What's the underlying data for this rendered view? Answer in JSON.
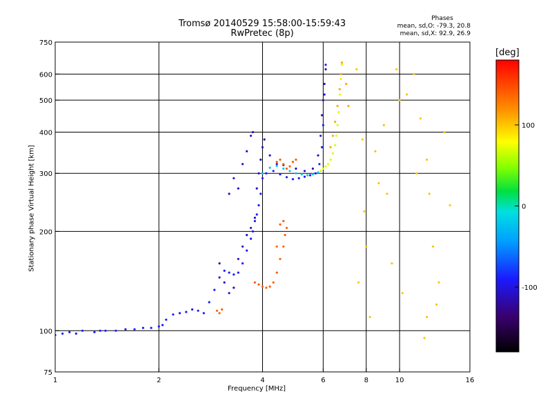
{
  "chart_data": {
    "type": "scatter",
    "title": "Tromsø 20140529 15:58:00-15:59:43",
    "subtitle": "RwPretec (8p)",
    "xlabel": "Frequency [MHz]",
    "ylabel": "Stationary phase Virtual Height [km]",
    "x_scale": "log",
    "y_scale": "log",
    "xlim": [
      1,
      16
    ],
    "ylim": [
      75,
      750
    ],
    "x_ticks": [
      1,
      2,
      4,
      6,
      8,
      10,
      16
    ],
    "x_tick_labels": [
      "1",
      "2",
      "4",
      "6",
      "8",
      "10",
      "16"
    ],
    "y_ticks": [
      75,
      100,
      200,
      300,
      400,
      500,
      600,
      750
    ],
    "y_tick_labels": [
      "75",
      "100",
      "200",
      "300",
      "400",
      "500",
      "600",
      "750"
    ],
    "grid": true,
    "legend": {
      "title": "Phases",
      "lines": [
        "mean, sd,O: -79.3, 20.8",
        "mean, sd,X:  92.9, 26.9"
      ]
    },
    "colorbar": {
      "label": "[deg]",
      "min": -180,
      "max": 180,
      "ticks": [
        100,
        0,
        -100
      ],
      "tick_labels": [
        "100",
        "0",
        "-100"
      ],
      "colormap": "rainbow-black-to-red"
    },
    "series": [
      {
        "trace": "low-E-to-F-O",
        "phase_deg": -90,
        "points": [
          [
            1.0,
            97
          ],
          [
            1.05,
            98
          ],
          [
            1.1,
            99
          ],
          [
            1.15,
            98
          ],
          [
            1.2,
            100
          ],
          [
            1.3,
            99
          ],
          [
            1.35,
            100
          ],
          [
            1.4,
            100
          ],
          [
            1.5,
            100
          ],
          [
            1.6,
            101
          ],
          [
            1.7,
            101
          ],
          [
            1.8,
            102
          ],
          [
            1.9,
            102
          ],
          [
            2.0,
            103
          ],
          [
            2.05,
            104
          ],
          [
            2.1,
            108
          ],
          [
            2.2,
            112
          ],
          [
            2.3,
            113
          ],
          [
            2.4,
            114
          ],
          [
            2.5,
            116
          ],
          [
            2.6,
            115
          ],
          [
            2.7,
            113
          ],
          [
            2.8,
            122
          ],
          [
            2.9,
            133
          ],
          [
            3.0,
            145
          ],
          [
            3.1,
            152
          ],
          [
            3.2,
            150
          ],
          [
            3.3,
            148
          ],
          [
            3.4,
            150
          ],
          [
            3.5,
            160
          ],
          [
            3.6,
            175
          ],
          [
            3.7,
            190
          ],
          [
            3.75,
            200
          ],
          [
            3.8,
            215
          ],
          [
            3.85,
            225
          ],
          [
            3.9,
            240
          ],
          [
            3.95,
            260
          ],
          [
            4.0,
            290
          ],
          [
            4.1,
            300
          ],
          [
            4.3,
            305
          ],
          [
            4.5,
            298
          ],
          [
            4.7,
            292
          ],
          [
            4.9,
            288
          ],
          [
            5.1,
            290
          ],
          [
            5.3,
            293
          ],
          [
            5.5,
            296
          ],
          [
            5.7,
            300
          ],
          [
            5.85,
            320
          ],
          [
            5.95,
            360
          ],
          [
            6.0,
            420
          ],
          [
            6.05,
            520
          ],
          [
            6.1,
            640
          ]
        ]
      },
      {
        "trace": "F-spread-blue",
        "phase_deg": -110,
        "points": [
          [
            3.0,
            160
          ],
          [
            3.1,
            140
          ],
          [
            3.2,
            130
          ],
          [
            3.3,
            135
          ],
          [
            3.4,
            165
          ],
          [
            3.5,
            180
          ],
          [
            3.6,
            195
          ],
          [
            3.7,
            205
          ],
          [
            3.8,
            220
          ],
          [
            3.85,
            270
          ],
          [
            3.9,
            300
          ],
          [
            3.95,
            330
          ],
          [
            4.0,
            360
          ],
          [
            4.05,
            380
          ],
          [
            3.6,
            350
          ],
          [
            3.5,
            320
          ],
          [
            3.3,
            290
          ],
          [
            3.4,
            270
          ],
          [
            3.2,
            260
          ],
          [
            3.7,
            390
          ],
          [
            3.75,
            400
          ],
          [
            4.2,
            340
          ],
          [
            4.4,
            320
          ],
          [
            4.6,
            318
          ],
          [
            5.0,
            310
          ],
          [
            5.3,
            305
          ],
          [
            5.6,
            310
          ],
          [
            5.8,
            340
          ],
          [
            5.9,
            390
          ],
          [
            5.95,
            450
          ],
          [
            6.0,
            500
          ],
          [
            6.05,
            560
          ],
          [
            6.1,
            620
          ]
        ]
      },
      {
        "trace": "X-mode-orange",
        "phase_deg": 140,
        "points": [
          [
            3.8,
            140
          ],
          [
            3.9,
            138
          ],
          [
            4.0,
            136
          ],
          [
            4.1,
            135
          ],
          [
            4.2,
            136
          ],
          [
            4.3,
            140
          ],
          [
            4.4,
            150
          ],
          [
            4.5,
            165
          ],
          [
            4.6,
            180
          ],
          [
            4.65,
            195
          ],
          [
            4.7,
            205
          ],
          [
            4.6,
            215
          ],
          [
            4.5,
            210
          ],
          [
            4.4,
            180
          ],
          [
            2.95,
            115
          ],
          [
            3.0,
            113
          ],
          [
            3.05,
            116
          ],
          [
            4.4,
            325
          ],
          [
            4.5,
            330
          ],
          [
            4.6,
            320
          ],
          [
            4.7,
            310
          ],
          [
            4.8,
            315
          ],
          [
            4.9,
            325
          ],
          [
            5.0,
            330
          ]
        ]
      },
      {
        "trace": "X-mode-cyan",
        "phase_deg": -20,
        "points": [
          [
            4.0,
            300
          ],
          [
            4.2,
            312
          ],
          [
            4.4,
            316
          ],
          [
            4.6,
            310
          ],
          [
            4.8,
            305
          ],
          [
            5.0,
            300
          ],
          [
            5.2,
            298
          ],
          [
            5.4,
            296
          ],
          [
            5.6,
            298
          ],
          [
            5.8,
            302
          ]
        ]
      },
      {
        "trace": "X-mode-green",
        "phase_deg": 70,
        "points": [
          [
            5.9,
            305
          ],
          [
            6.0,
            310
          ],
          [
            6.1,
            315
          ],
          [
            6.2,
            320
          ],
          [
            6.3,
            330
          ],
          [
            6.4,
            345
          ],
          [
            6.5,
            365
          ],
          [
            6.55,
            390
          ],
          [
            6.6,
            420
          ],
          [
            6.65,
            460
          ],
          [
            6.7,
            520
          ],
          [
            6.75,
            580
          ],
          [
            6.8,
            640
          ]
        ]
      },
      {
        "trace": "X-mode-yellow",
        "phase_deg": 110,
        "points": [
          [
            6.3,
            360
          ],
          [
            6.4,
            390
          ],
          [
            6.5,
            430
          ],
          [
            6.6,
            480
          ],
          [
            6.7,
            540
          ],
          [
            6.75,
            600
          ],
          [
            6.8,
            650
          ],
          [
            7.0,
            560
          ],
          [
            7.1,
            480
          ]
        ]
      },
      {
        "trace": "scattered-noise",
        "phase_deg": 100,
        "points": [
          [
            7.5,
            620
          ],
          [
            7.9,
            230
          ],
          [
            8.0,
            180
          ],
          [
            8.5,
            350
          ],
          [
            8.7,
            280
          ],
          [
            9.0,
            420
          ],
          [
            9.5,
            160
          ],
          [
            9.8,
            620
          ],
          [
            10.0,
            500
          ],
          [
            10.5,
            520
          ],
          [
            11.0,
            600
          ],
          [
            11.2,
            300
          ],
          [
            11.5,
            440
          ],
          [
            12.0,
            330
          ],
          [
            12.2,
            260
          ],
          [
            12.5,
            180
          ],
          [
            13.0,
            140
          ],
          [
            13.5,
            400
          ],
          [
            14.0,
            240
          ],
          [
            7.6,
            140
          ],
          [
            8.2,
            110
          ],
          [
            10.2,
            130
          ],
          [
            11.8,
            95
          ],
          [
            12.8,
            120
          ],
          [
            7.8,
            380
          ],
          [
            9.2,
            260
          ],
          [
            12.0,
            110
          ]
        ]
      }
    ]
  }
}
